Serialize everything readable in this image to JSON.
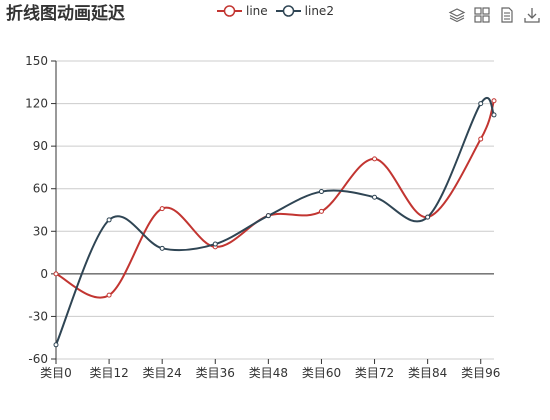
{
  "title": "折线图动画延迟",
  "legend": [
    {
      "name": "line",
      "color": "#c23531"
    },
    {
      "name": "line2",
      "color": "#2f4554"
    }
  ],
  "toolbox": [
    "data-view-icon",
    "grid-icon",
    "document-icon",
    "download-icon"
  ],
  "chart_data": {
    "type": "line",
    "smooth": true,
    "x_axis_labels": [
      "类目0",
      "类目12",
      "类目24",
      "类目36",
      "类目48",
      "类目60",
      "类目72",
      "类目84",
      "类目96"
    ],
    "x": [
      0,
      12,
      24,
      36,
      48,
      60,
      72,
      84,
      96,
      99
    ],
    "ylim": [
      -60,
      150
    ],
    "yticks": [
      -60,
      -30,
      0,
      30,
      60,
      90,
      120,
      150
    ],
    "grid": true,
    "legend_position": "top-center",
    "series": [
      {
        "name": "line",
        "color": "#c23531",
        "values": [
          0,
          -15,
          46,
          19,
          41,
          44,
          81,
          40,
          95,
          122
        ]
      },
      {
        "name": "line2",
        "color": "#2f4554",
        "values": [
          -50,
          38,
          18,
          21,
          41,
          58,
          54,
          40,
          120,
          112
        ]
      }
    ]
  }
}
